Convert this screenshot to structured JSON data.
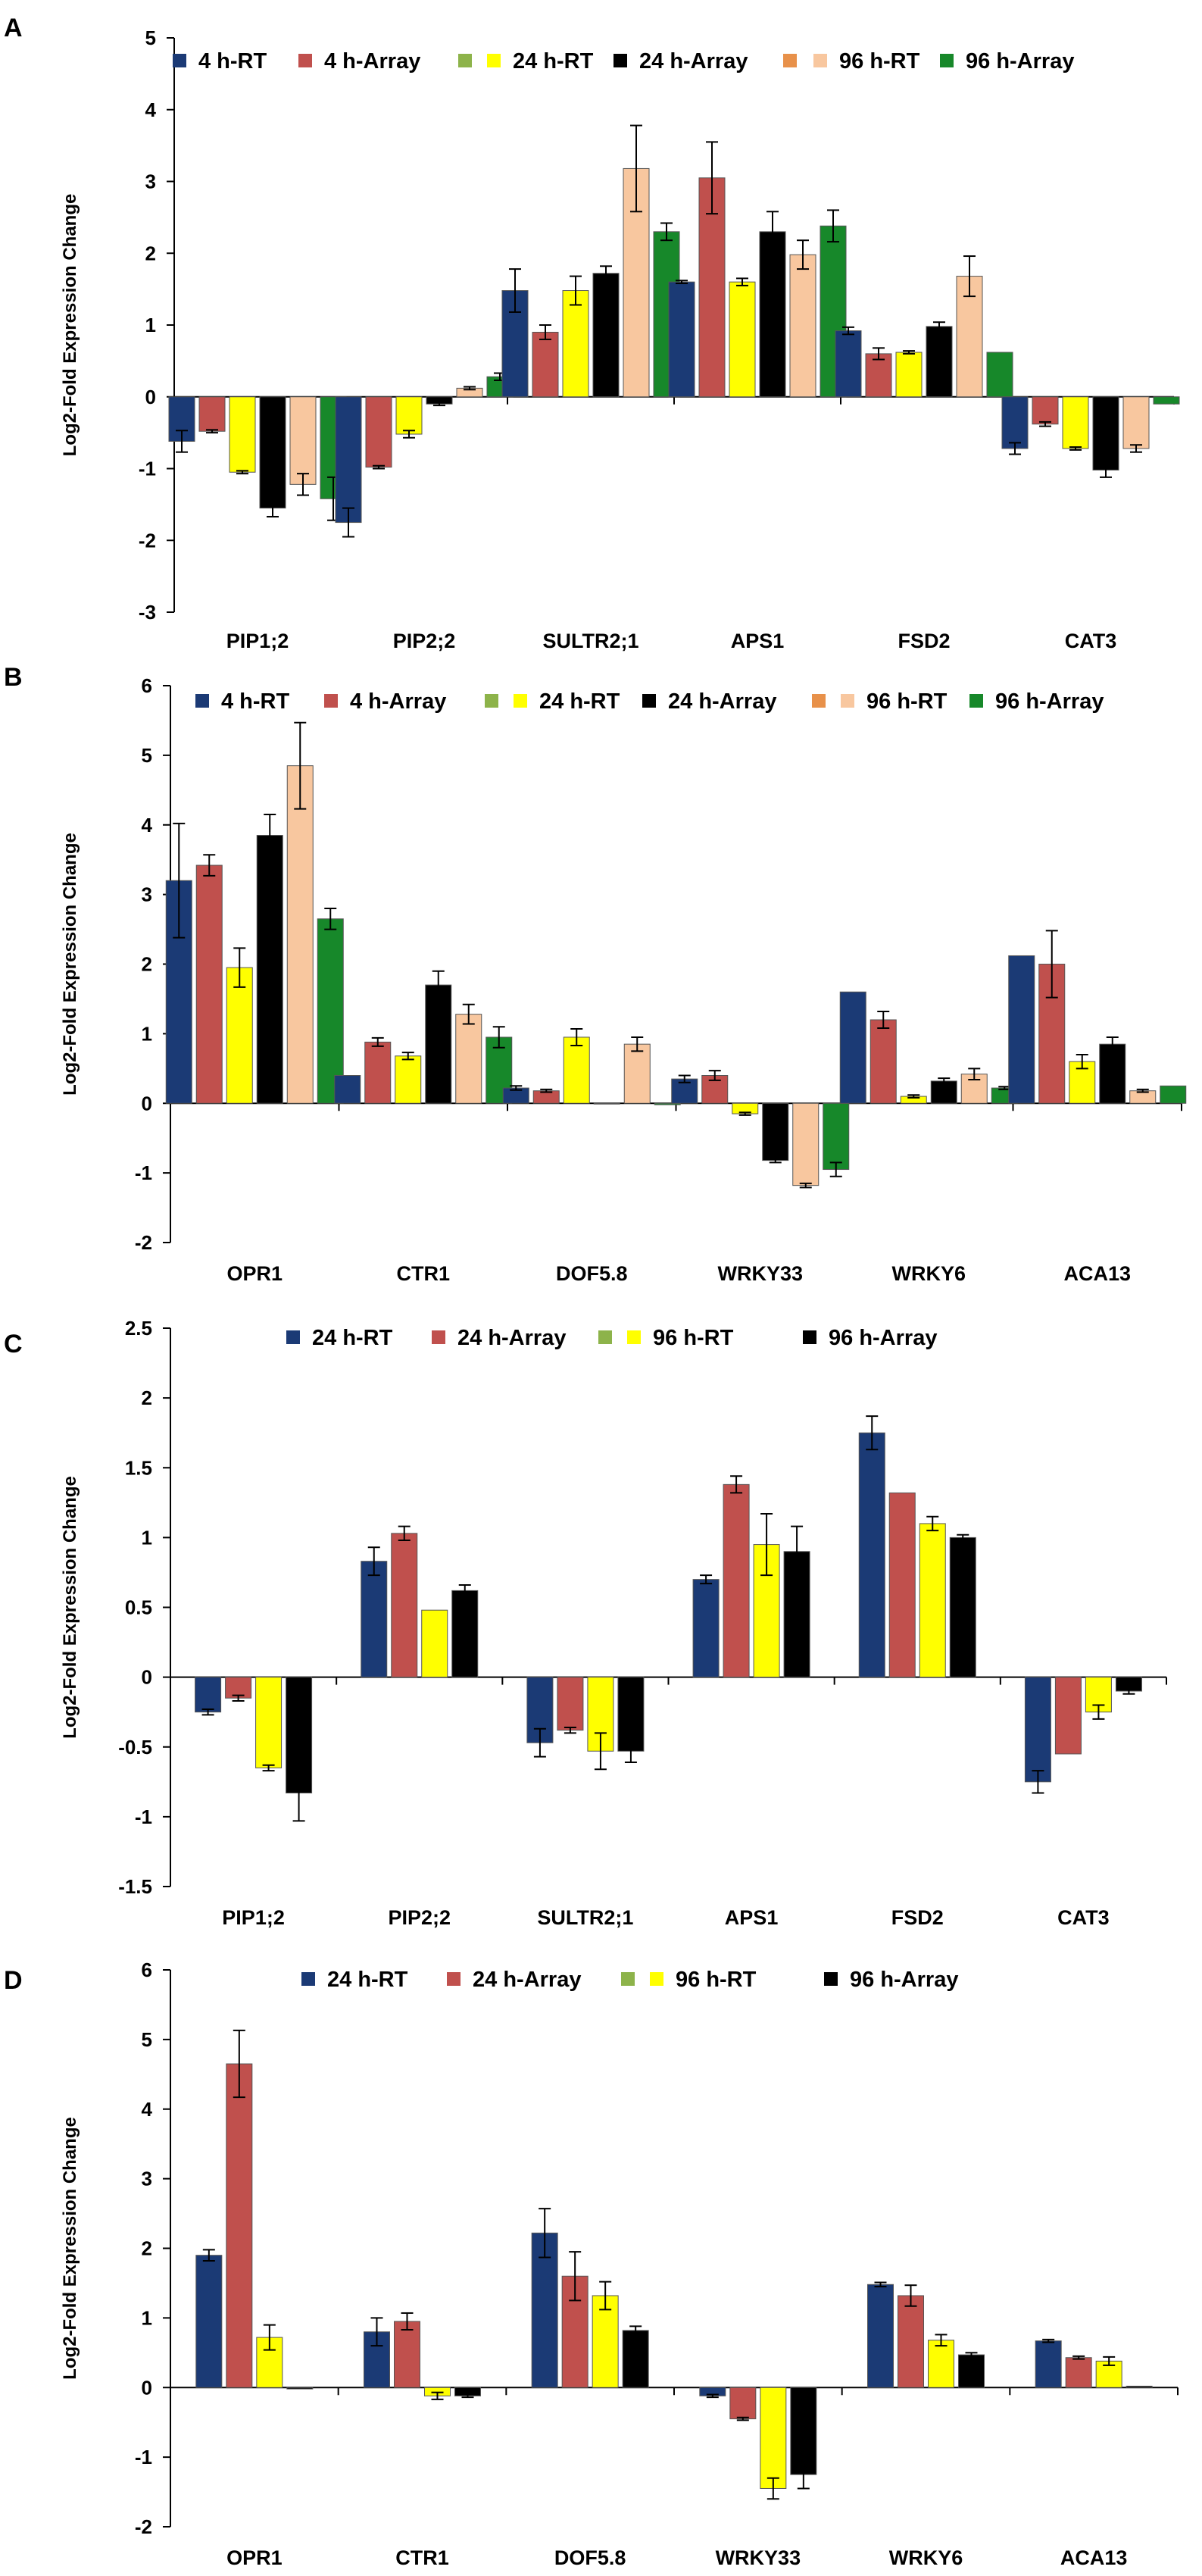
{
  "colors": {
    "navy": "#1b3a75",
    "red": "#c0504d",
    "lightgreen": "#8db34a",
    "yellow": "#ffff00",
    "black": "#000000",
    "orange": "#e8914a",
    "peach": "#f8c79f",
    "green": "#17882a"
  },
  "chart_data": [
    {
      "panel": "A",
      "type": "bar",
      "ylabel": "Log2-Fold Expression Change",
      "ylim": [
        -3,
        5
      ],
      "yticks": [
        -3,
        -2,
        -1,
        0,
        1,
        2,
        3,
        4,
        5
      ],
      "categories": [
        "PIP1;2",
        "PIP2;2",
        "SULTR2;1",
        "APS1",
        "FSD2",
        "CAT3"
      ],
      "legend": [
        {
          "label": "4 h-RT",
          "color": "#1b3a75"
        },
        {
          "label": "4 h-Array",
          "color": "#c0504d"
        },
        {
          "label": "",
          "color": "#8db34a"
        },
        {
          "label": "24 h-RT",
          "color": "#ffff00"
        },
        {
          "label": "24 h-Array",
          "color": "#000000"
        },
        {
          "label": "",
          "color": "#e8914a"
        },
        {
          "label": "96 h-RT",
          "color": "#f8c79f"
        },
        {
          "label": "96 h-Array",
          "color": "#17882a"
        }
      ],
      "series": [
        {
          "name": "4 h-RT",
          "color": "#1b3a75",
          "values": [
            -0.62,
            -1.75,
            1.48,
            1.6,
            0.92,
            -0.72
          ],
          "errors": [
            0.15,
            0.2,
            0.3,
            0.02,
            0.05,
            0.08
          ]
        },
        {
          "name": "4 h-Array",
          "color": "#c0504d",
          "values": [
            -0.48,
            -0.98,
            0.9,
            3.05,
            0.6,
            -0.38
          ],
          "errors": [
            0.02,
            0.02,
            0.1,
            0.5,
            0.08,
            0.03
          ]
        },
        {
          "name": "24 h-RT",
          "color": "#ffff00",
          "values": [
            -1.05,
            -0.52,
            1.48,
            1.6,
            0.62,
            -0.72
          ],
          "errors": [
            0.02,
            0.05,
            0.2,
            0.05,
            0.02,
            0.02
          ]
        },
        {
          "name": "24 h-Array",
          "color": "#000000",
          "values": [
            -1.55,
            -0.1,
            1.72,
            2.3,
            0.98,
            -1.02
          ],
          "errors": [
            0.12,
            0.02,
            0.1,
            0.28,
            0.06,
            0.1
          ]
        },
        {
          "name": "96 h-RT",
          "color": "#f8c79f",
          "values": [
            -1.22,
            0.12,
            3.18,
            1.98,
            1.68,
            -0.72
          ],
          "errors": [
            0.15,
            0.02,
            0.6,
            0.2,
            0.28,
            0.05
          ]
        },
        {
          "name": "96 h-Array",
          "color": "#17882a",
          "values": [
            -1.42,
            0.28,
            2.3,
            2.38,
            0.62,
            -0.1
          ],
          "errors": [
            0.3,
            0.05,
            0.12,
            0.22,
            0.0,
            0.0
          ]
        }
      ]
    },
    {
      "panel": "B",
      "type": "bar",
      "ylabel": "Log2-Fold Expression Change",
      "ylim": [
        -2,
        6
      ],
      "yticks": [
        -2,
        -1,
        0,
        1,
        2,
        3,
        4,
        5,
        6
      ],
      "categories": [
        "OPR1",
        "CTR1",
        "DOF5.8",
        "WRKY33",
        "WRKY6",
        "ACA13"
      ],
      "legend": [
        {
          "label": "4 h-RT",
          "color": "#1b3a75"
        },
        {
          "label": "4 h-Array",
          "color": "#c0504d"
        },
        {
          "label": "",
          "color": "#8db34a"
        },
        {
          "label": "24 h-RT",
          "color": "#ffff00"
        },
        {
          "label": "24 h-Array",
          "color": "#000000"
        },
        {
          "label": "",
          "color": "#e8914a"
        },
        {
          "label": "96 h-RT",
          "color": "#f8c79f"
        },
        {
          "label": "96 h-Array",
          "color": "#17882a"
        }
      ],
      "series": [
        {
          "name": "4 h-RT",
          "color": "#1b3a75",
          "values": [
            3.2,
            0.4,
            0.22,
            0.35,
            1.6,
            2.12
          ],
          "errors": [
            0.82,
            0.0,
            0.03,
            0.05,
            0.0,
            0.0
          ]
        },
        {
          "name": "4 h-Array",
          "color": "#c0504d",
          "values": [
            3.42,
            0.88,
            0.18,
            0.4,
            1.2,
            2.0
          ],
          "errors": [
            0.15,
            0.06,
            0.02,
            0.07,
            0.12,
            0.48
          ]
        },
        {
          "name": "24 h-RT",
          "color": "#ffff00",
          "values": [
            1.95,
            0.68,
            0.95,
            -0.15,
            0.1,
            0.6
          ],
          "errors": [
            0.28,
            0.05,
            0.12,
            0.02,
            0.02,
            0.1
          ]
        },
        {
          "name": "24 h-Array",
          "color": "#000000",
          "values": [
            3.85,
            1.7,
            0.0,
            -0.82,
            0.32,
            0.85
          ],
          "errors": [
            0.3,
            0.2,
            0.0,
            0.03,
            0.04,
            0.1
          ]
        },
        {
          "name": "96 h-RT",
          "color": "#f8c79f",
          "values": [
            4.85,
            1.28,
            0.85,
            -1.18,
            0.42,
            0.18
          ],
          "errors": [
            0.62,
            0.14,
            0.1,
            0.03,
            0.08,
            0.02
          ]
        },
        {
          "name": "96 h-Array",
          "color": "#17882a",
          "values": [
            2.65,
            0.95,
            -0.02,
            -0.95,
            0.22,
            0.25
          ],
          "errors": [
            0.15,
            0.15,
            0.0,
            0.1,
            0.02,
            0.0
          ]
        }
      ]
    },
    {
      "panel": "C",
      "type": "bar",
      "ylabel": "Log2-Fold Expression Change",
      "ylim": [
        -1.5,
        2.5
      ],
      "yticks": [
        -1.5,
        -1,
        -0.5,
        0,
        0.5,
        1,
        1.5,
        2,
        2.5
      ],
      "categories": [
        "PIP1;2",
        "PIP2;2",
        "SULTR2;1",
        "APS1",
        "FSD2",
        "CAT3"
      ],
      "legend": [
        {
          "label": "24 h-RT",
          "color": "#1b3a75"
        },
        {
          "label": "24 h-Array",
          "color": "#c0504d"
        },
        {
          "label": "",
          "color": "#8db34a"
        },
        {
          "label": "96 h-RT",
          "color": "#ffff00"
        },
        {
          "label": "96 h-Array",
          "color": "#000000"
        }
      ],
      "series": [
        {
          "name": "24 h-RT",
          "color": "#1b3a75",
          "values": [
            -0.25,
            0.83,
            -0.47,
            0.7,
            1.75,
            -0.75
          ],
          "errors": [
            0.02,
            0.1,
            0.1,
            0.03,
            0.12,
            0.08
          ]
        },
        {
          "name": "24 h-Array",
          "color": "#c0504d",
          "values": [
            -0.15,
            1.03,
            -0.38,
            1.38,
            1.32,
            -0.55
          ],
          "errors": [
            0.02,
            0.05,
            0.02,
            0.06,
            0.0,
            0.0
          ]
        },
        {
          "name": "96 h-RT",
          "color": "#ffff00",
          "values": [
            -0.65,
            0.48,
            -0.53,
            0.95,
            1.1,
            -0.25
          ],
          "errors": [
            0.02,
            0.0,
            0.13,
            0.22,
            0.05,
            0.05
          ]
        },
        {
          "name": "96 h-Array",
          "color": "#000000",
          "values": [
            -0.83,
            0.62,
            -0.53,
            0.9,
            1.0,
            -0.1
          ],
          "errors": [
            0.2,
            0.04,
            0.08,
            0.18,
            0.02,
            0.02
          ]
        }
      ]
    },
    {
      "panel": "D",
      "type": "bar",
      "ylabel": "Log2-Fold Expression Change",
      "ylim": [
        -2,
        6
      ],
      "yticks": [
        -2,
        -1,
        0,
        1,
        2,
        3,
        4,
        5,
        6
      ],
      "categories": [
        "OPR1",
        "CTR1",
        "DOF5.8",
        "WRKY33",
        "WRKY6",
        "ACA13"
      ],
      "legend": [
        {
          "label": "24 h-RT",
          "color": "#1b3a75"
        },
        {
          "label": "24 h-Array",
          "color": "#c0504d"
        },
        {
          "label": "",
          "color": "#8db34a"
        },
        {
          "label": "96 h-RT",
          "color": "#ffff00"
        },
        {
          "label": "96 h-Array",
          "color": "#000000"
        }
      ],
      "series": [
        {
          "name": "24 h-RT",
          "color": "#1b3a75",
          "values": [
            1.9,
            0.8,
            2.22,
            -0.12,
            1.48,
            0.67
          ],
          "errors": [
            0.08,
            0.2,
            0.35,
            0.02,
            0.03,
            0.02
          ]
        },
        {
          "name": "24 h-Array",
          "color": "#c0504d",
          "values": [
            4.65,
            0.95,
            1.6,
            -0.45,
            1.32,
            0.43
          ],
          "errors": [
            0.48,
            0.12,
            0.35,
            0.02,
            0.15,
            0.02
          ]
        },
        {
          "name": "96 h-RT",
          "color": "#ffff00",
          "values": [
            0.72,
            -0.12,
            1.32,
            -1.45,
            0.68,
            0.38
          ],
          "errors": [
            0.18,
            0.05,
            0.2,
            0.15,
            0.08,
            0.06
          ]
        },
        {
          "name": "96 h-Array",
          "color": "#000000",
          "values": [
            -0.02,
            -0.12,
            0.82,
            -1.25,
            0.47,
            0.02
          ],
          "errors": [
            0.0,
            0.02,
            0.06,
            0.2,
            0.03,
            0.0
          ]
        }
      ]
    }
  ]
}
